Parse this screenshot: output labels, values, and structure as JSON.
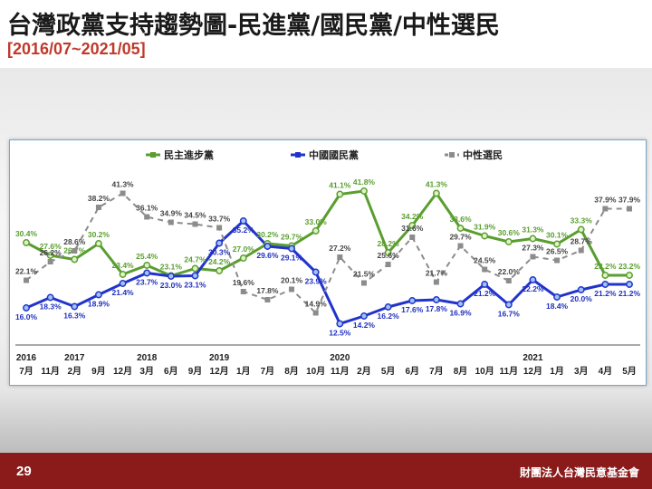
{
  "header": {
    "title": "台灣政黨支持趨勢圖-民進黨/國民黨/中性選民",
    "subtitle": "[2016/07~2021/05]"
  },
  "footer": {
    "page_number": "29",
    "organization": "財團法人台灣民意基金會"
  },
  "colors": {
    "dpp": "#5a9e2f",
    "kmt": "#2233cc",
    "neutral": "#8c8c8c",
    "footer": "#8b1a1a"
  },
  "chart_data": {
    "type": "line",
    "title": "",
    "xlabel": "",
    "ylabel": "",
    "ylim": [
      10,
      45
    ],
    "grid": false,
    "legend_position": "top",
    "categories": [
      "7月",
      "11月",
      "2月",
      "9月",
      "12月",
      "3月",
      "6月",
      "9月",
      "12月",
      "1月",
      "7月",
      "8月",
      "10月",
      "11月",
      "2月",
      "5月",
      "6月",
      "7月",
      "8月",
      "10月",
      "11月",
      "12月",
      "1月",
      "3月",
      "4月",
      "5月"
    ],
    "year_labels": [
      {
        "index": 0,
        "label": "2016"
      },
      {
        "index": 2,
        "label": "2017"
      },
      {
        "index": 5,
        "label": "2018"
      },
      {
        "index": 8,
        "label": "2019"
      },
      {
        "index": 13,
        "label": "2020"
      },
      {
        "index": 21,
        "label": "2021"
      }
    ],
    "series": [
      {
        "name": "民主進步黨",
        "style": "solid",
        "color": "#5a9e2f",
        "values": [
          30.4,
          27.6,
          26.7,
          30.2,
          23.4,
          25.4,
          23.1,
          24.7,
          24.2,
          27.0,
          30.2,
          29.7,
          33.0,
          41.1,
          41.8,
          28.2,
          34.2,
          41.3,
          33.6,
          31.9,
          30.6,
          31.3,
          30.1,
          33.3,
          23.2,
          23.2
        ]
      },
      {
        "name": "中國國民黨",
        "style": "solid",
        "color": "#2233cc",
        "values": [
          16.0,
          18.3,
          16.3,
          18.9,
          21.4,
          23.7,
          23.0,
          23.1,
          30.3,
          35.2,
          29.6,
          29.1,
          23.9,
          12.5,
          14.2,
          16.2,
          17.6,
          17.8,
          16.9,
          21.2,
          16.7,
          22.2,
          18.4,
          20.0,
          21.2,
          21.2
        ]
      },
      {
        "name": "中性選民",
        "style": "dashed",
        "color": "#8c8c8c",
        "values": [
          22.1,
          26.2,
          28.6,
          38.2,
          41.3,
          36.1,
          34.9,
          34.5,
          33.7,
          19.6,
          17.8,
          20.1,
          14.9,
          27.2,
          21.5,
          25.6,
          31.6,
          21.7,
          29.7,
          24.5,
          22.0,
          27.3,
          26.5,
          28.7,
          37.9,
          37.9
        ]
      }
    ]
  }
}
